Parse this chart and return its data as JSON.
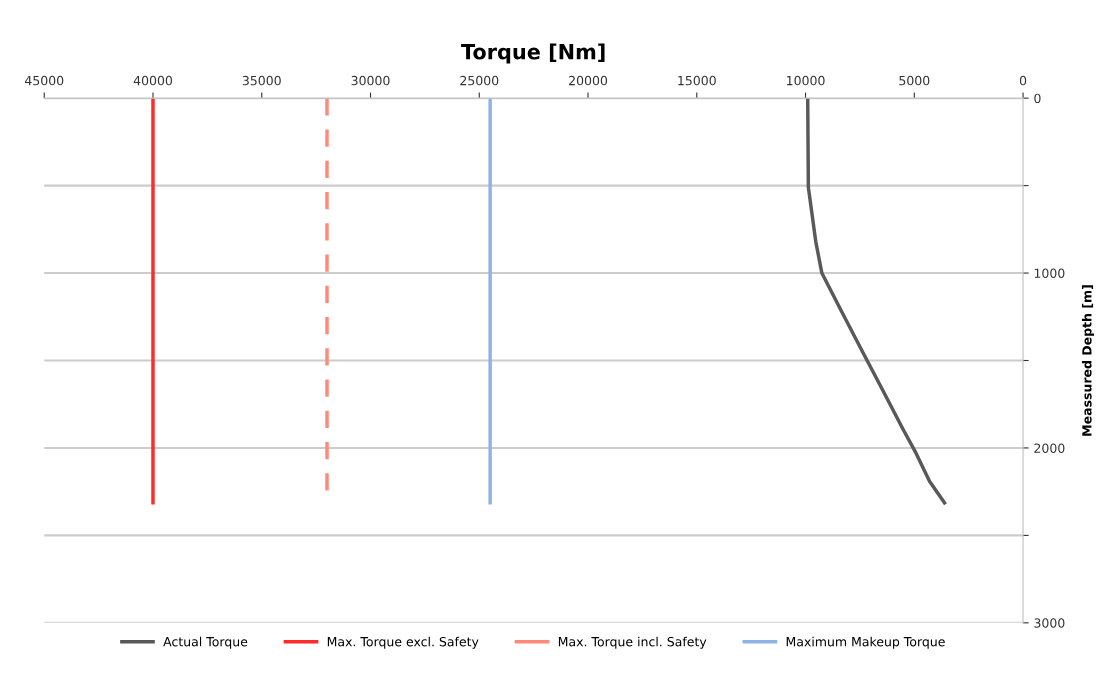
{
  "chart_data": {
    "type": "line",
    "title": "Torque [Nm]",
    "ylabel": "Meassured Depth [m]",
    "xlim": [
      45000,
      0
    ],
    "xticks": [
      45000,
      40000,
      35000,
      30000,
      25000,
      20000,
      15000,
      10000,
      5000,
      0
    ],
    "ylim": [
      3000,
      0
    ],
    "yticks": [
      0,
      {
        "value": 500,
        "label": null
      },
      1000,
      {
        "value": 1500,
        "label": null
      },
      2000,
      {
        "value": 2500,
        "label": null
      },
      3000
    ],
    "grid": "y",
    "legend": "bottom",
    "marker": "none",
    "series": [
      {
        "name": "Actual Torque",
        "color": "#595959",
        "line_style": "solid",
        "x": [
          9900,
          9870,
          9530,
          9250,
          8300,
          7380,
          6450,
          5530,
          4920,
          4300,
          3610
        ],
        "values": [
          0,
          510,
          820,
          1000,
          1230,
          1450,
          1670,
          1890,
          2030,
          2190,
          2314
        ]
      },
      {
        "name": "Max. Torque excl. Safety",
        "color": "#ff2b2b",
        "line_style": "solid",
        "x": [
          40000,
          40000
        ],
        "values": [
          0,
          2314
        ]
      },
      {
        "name": "Max. Torque incl. Safety",
        "color": "#ff8a7a",
        "line_style": "dashed",
        "x": [
          32000,
          32000
        ],
        "values": [
          0,
          2263
        ]
      },
      {
        "name": "Maximum Makeup Torque",
        "color": "#8fb4e3",
        "line_style": "solid",
        "x": [
          24500,
          24500
        ],
        "values": [
          0,
          2314
        ]
      }
    ]
  }
}
